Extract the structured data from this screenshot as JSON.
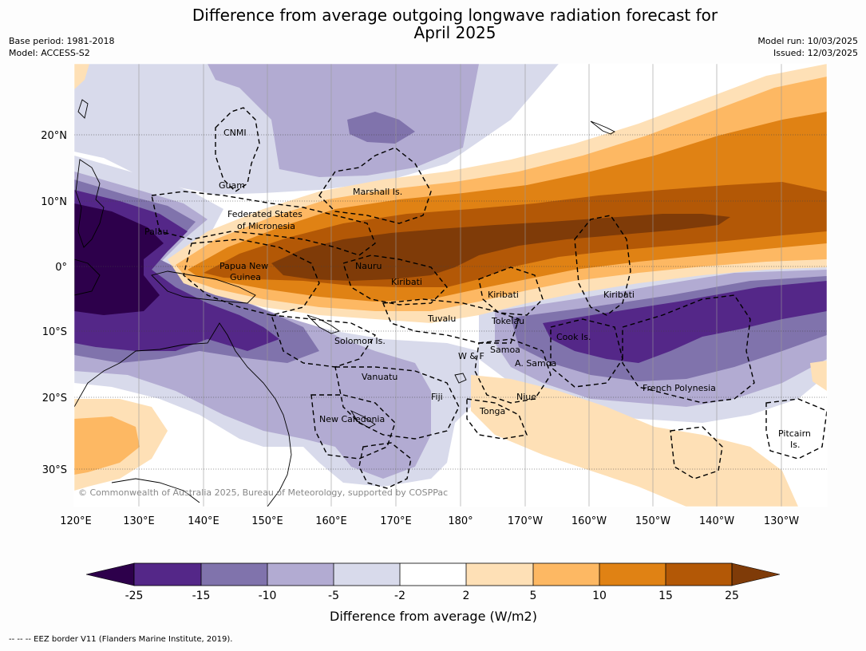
{
  "title": {
    "line1": "Difference from average outgoing longwave radiation forecast for",
    "line2": "April 2025"
  },
  "meta": {
    "base_period": "Base period: 1981-2018",
    "model": "Model: ACCESS-S2",
    "model_run": "Model run: 10/03/2025",
    "issued": "Issued: 12/03/2025"
  },
  "axes": {
    "lon_labels": [
      "120°E",
      "130°E",
      "140°E",
      "150°E",
      "160°E",
      "170°E",
      "180°",
      "170°W",
      "160°W",
      "150°W",
      "140°W",
      "130°W"
    ],
    "lat_labels": [
      "20°N",
      "10°N",
      "0°",
      "10°S",
      "20°S",
      "30°S"
    ]
  },
  "place_labels": [
    "CNMI",
    "Guam",
    "Marshall Is.",
    "Federated States",
    "of Micronesia",
    "Palau",
    "Papua New",
    "Guinea",
    "Nauru",
    "Kiribati",
    "Kiribati",
    "Kiribati",
    "Tuvalu",
    "Tokelau",
    "Solomon Is.",
    "Samoa",
    "W & F",
    "A. Samoa",
    "Cook Is.",
    "Vanuatu",
    "Fiji",
    "Niue",
    "French Polynesia",
    "Tonga",
    "New Caledonia",
    "Pitcairn",
    "Is."
  ],
  "copyright": "© Commonwealth of Australia 2025, Bureau of Meteorology, supported by COSPPac",
  "colorbar": {
    "ticks": [
      "-25",
      "-15",
      "-10",
      "-5",
      "-2",
      "2",
      "5",
      "10",
      "15",
      "25"
    ],
    "label": "Difference from average (W/m2)",
    "colors": {
      "below_-25": "#2d004b",
      "-25_-15": "#542788",
      "-15_-10": "#8073ac",
      "-10_-5": "#b2abd2",
      "-5_-2": "#d8daeb",
      "-2_2": "#ffffff",
      "2_5": "#fee0b6",
      "5_10": "#fdb863",
      "10_15": "#e08214",
      "15_25": "#b35806",
      "above_25": "#7f3b08"
    }
  },
  "legend_note": "--  --  -- EEZ border V11 (Flanders Marine Institute, 2019)."
}
